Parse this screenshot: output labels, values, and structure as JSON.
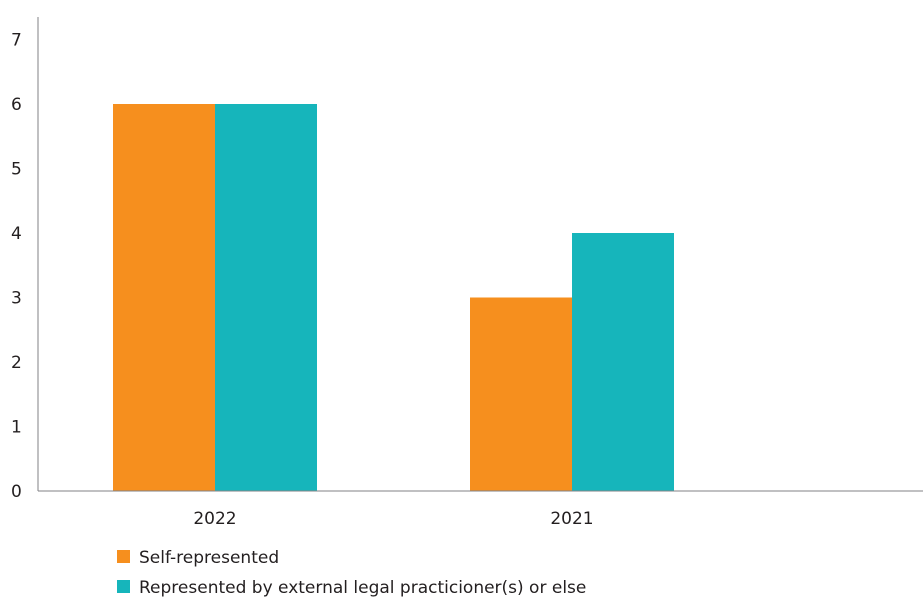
{
  "chart_data": {
    "type": "bar",
    "title": "",
    "xlabel": "",
    "ylabel": "",
    "categories": [
      "2022",
      "2021"
    ],
    "series": [
      {
        "name": "Self-represented",
        "values": [
          6,
          3
        ],
        "color": "#f68f1e"
      },
      {
        "name": "Represented by external legal practicioner(s) or else",
        "values": [
          6,
          4
        ],
        "color": "#16b5bb"
      }
    ],
    "ylim": [
      0,
      7
    ],
    "yticks": [
      "0",
      "1",
      "2",
      "3",
      "4",
      "5",
      "6",
      "7"
    ],
    "grid": false,
    "legend_position": "bottom-left"
  }
}
